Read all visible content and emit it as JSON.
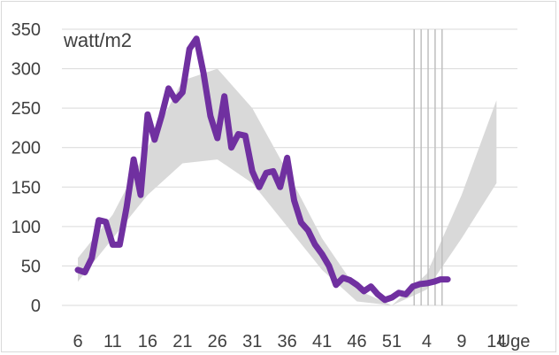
{
  "chart_data": {
    "type": "line",
    "title": "",
    "ylabel": "watt/m2",
    "xlabel": "Uge",
    "ylim": [
      0,
      350
    ],
    "grid": true,
    "y_ticks": [
      0,
      50,
      100,
      150,
      200,
      250,
      300,
      350
    ],
    "x_tick_labels": [
      "6",
      "11",
      "16",
      "21",
      "26",
      "31",
      "36",
      "41",
      "46",
      "51",
      "4",
      "9",
      "14"
    ],
    "colors": {
      "series": "#7030a0",
      "band": "#d9d9d9",
      "grid": "#d9d9d9",
      "marker_lines": "#bfbfbf"
    },
    "band": {
      "x": [
        6,
        11,
        16,
        21,
        26,
        31,
        36,
        41,
        46,
        51,
        56,
        61,
        66
      ],
      "lower": [
        30,
        85,
        140,
        180,
        185,
        155,
        100,
        45,
        5,
        -5,
        20,
        85,
        155
      ],
      "upper": [
        60,
        115,
        200,
        285,
        300,
        250,
        170,
        85,
        20,
        0,
        40,
        140,
        260
      ]
    },
    "vertical_markers_x": [
      54.2,
      55.2,
      56.2,
      57.2,
      58.2
    ],
    "series": [
      {
        "x": [
          6,
          7,
          8,
          9,
          10,
          11,
          12,
          13,
          14,
          15,
          16,
          17,
          18,
          19,
          20,
          21,
          22,
          23,
          24,
          25,
          26,
          27,
          28,
          29,
          30,
          31,
          32,
          33,
          34,
          35,
          36,
          37,
          38,
          39,
          40,
          41,
          42,
          43,
          44,
          45,
          46,
          47,
          48,
          49,
          50,
          51,
          52,
          53,
          54,
          55,
          56,
          57,
          58,
          59
        ],
        "values": [
          45,
          42,
          60,
          108,
          106,
          77,
          77,
          125,
          185,
          140,
          242,
          210,
          240,
          275,
          260,
          270,
          325,
          338,
          295,
          240,
          212,
          265,
          200,
          217,
          215,
          170,
          150,
          168,
          170,
          150,
          187,
          133,
          105,
          95,
          77,
          65,
          50,
          26,
          35,
          32,
          26,
          18,
          24,
          14,
          7,
          10,
          16,
          14,
          24,
          27,
          28,
          30,
          33,
          33
        ]
      }
    ]
  }
}
